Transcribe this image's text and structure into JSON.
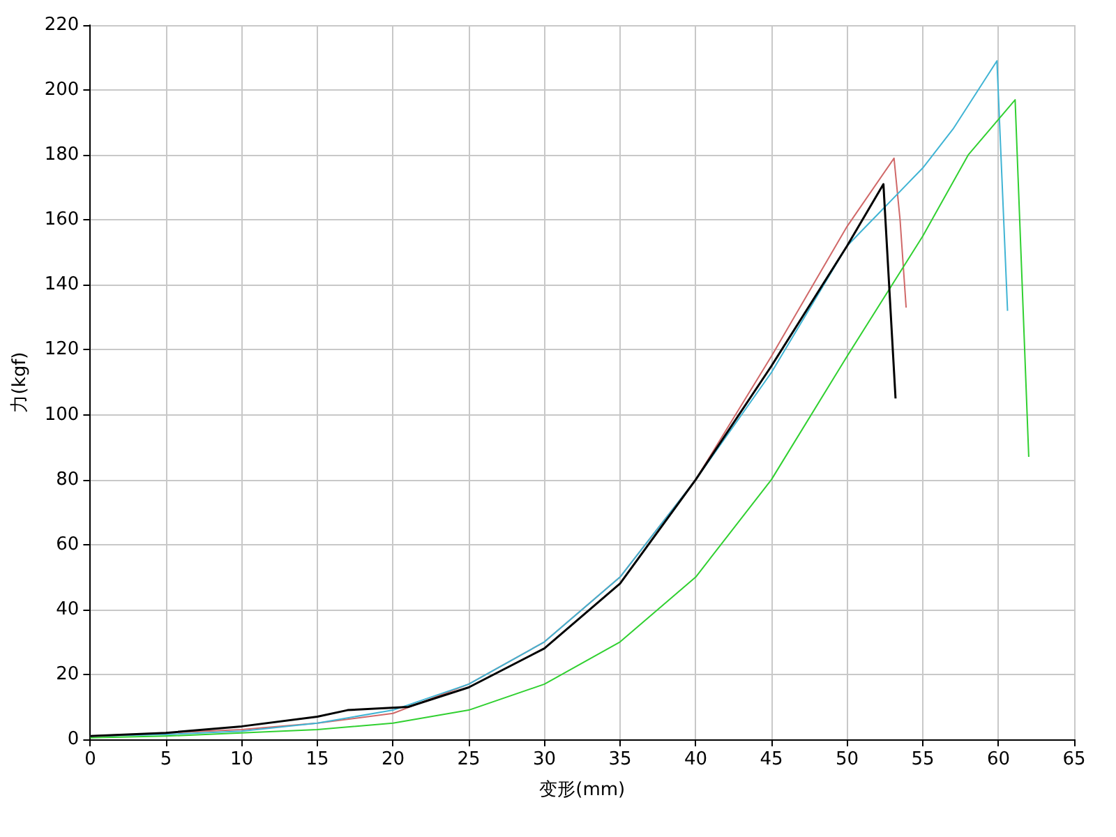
{
  "chart_data": {
    "type": "line",
    "xlabel": "变形(mm)",
    "ylabel": "力(kgf)",
    "xlim": [
      0,
      65
    ],
    "xticks": [
      0,
      5,
      10,
      15,
      20,
      25,
      30,
      35,
      40,
      45,
      50,
      55,
      60,
      65
    ],
    "ylim": [
      0,
      220
    ],
    "yticks": [
      0,
      20,
      40,
      60,
      80,
      100,
      120,
      140,
      160,
      180,
      200,
      220
    ],
    "grid": true,
    "marker": "none",
    "line_style": "solid",
    "series": [
      {
        "color": "#d06868",
        "x": [
          0,
          5,
          10,
          15,
          20,
          25,
          30,
          35,
          40,
          45,
          50,
          53.1,
          53.5,
          53.9
        ],
        "values": [
          1,
          2,
          3,
          5,
          8,
          17,
          30,
          50,
          80,
          118,
          158,
          179,
          160,
          133
        ]
      },
      {
        "color": "#40b4d4",
        "x": [
          0,
          5,
          10,
          15,
          20,
          25,
          30,
          35,
          40,
          45,
          50,
          55,
          57,
          59.9,
          60.6
        ],
        "values": [
          1,
          1.5,
          2.5,
          5,
          9,
          17,
          30,
          50,
          80,
          113,
          152,
          176,
          188,
          209,
          132
        ]
      },
      {
        "color": "#30d030",
        "x": [
          0,
          5,
          10,
          15,
          20,
          25,
          30,
          35,
          40,
          45,
          50,
          55,
          58,
          61.1,
          62
        ],
        "values": [
          0.5,
          1,
          2,
          3,
          5,
          9,
          17,
          30,
          50,
          80,
          118,
          155,
          180,
          197,
          87
        ]
      },
      {
        "color": "#000000",
        "x": [
          0,
          5,
          10,
          15,
          17,
          21,
          25,
          30,
          35,
          40,
          45,
          50,
          52.4,
          53.2
        ],
        "values": [
          1,
          2,
          4,
          7,
          9,
          10,
          16,
          28,
          48,
          80,
          115,
          152,
          171,
          105
        ]
      }
    ]
  }
}
